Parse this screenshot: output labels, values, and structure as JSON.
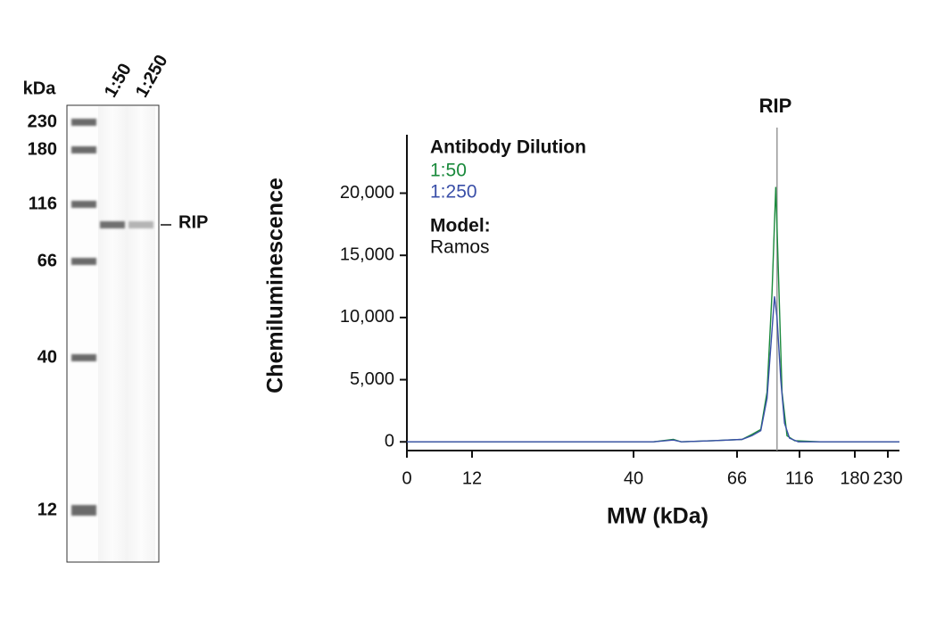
{
  "chart_data": [
    {
      "type": "gel",
      "unit_label": "kDa",
      "markers": [
        230,
        180,
        116,
        66,
        40,
        12
      ],
      "lanes": [
        "1:50",
        "1:250"
      ],
      "band_label": "RIP"
    },
    {
      "type": "line",
      "annotation": "RIP",
      "annotation_x": 98,
      "legend_title": "Antibody Dilution",
      "model_title": "Model:",
      "model": "Ramos",
      "ylabel": "Chemiluminescence",
      "xlabel": "MW (kDa)",
      "series": [
        {
          "name": "1:50",
          "color": "#1a8a3c",
          "x": [
            0,
            20,
            45,
            50,
            52,
            60,
            70,
            78,
            85,
            90,
            94,
            97,
            99,
            102,
            106,
            112,
            140,
            200,
            250
          ],
          "values": [
            0,
            0,
            0,
            200,
            0,
            100,
            200,
            600,
            1000,
            4000,
            12000,
            20500,
            14000,
            4000,
            500,
            100,
            0,
            0,
            0
          ]
        },
        {
          "name": "1:250",
          "color": "#3a4fa8",
          "x": [
            0,
            20,
            45,
            50,
            52,
            60,
            70,
            78,
            85,
            90,
            94,
            96,
            98,
            101,
            104,
            108,
            115,
            200,
            250
          ],
          "values": [
            0,
            0,
            0,
            150,
            0,
            100,
            200,
            500,
            900,
            3500,
            9000,
            11700,
            10000,
            5000,
            1500,
            300,
            0,
            0,
            0
          ]
        }
      ],
      "xlim": [
        0,
        250
      ],
      "ylim": [
        -700,
        24700
      ],
      "xticks": [
        0,
        12,
        40,
        66,
        116,
        180,
        230
      ],
      "yticks": [
        0,
        {
          "value": 5000,
          "label": "5,000"
        },
        {
          "value": 10000,
          "label": "10,000"
        },
        {
          "value": 15000,
          "label": "15,000"
        },
        {
          "value": 20000,
          "label": "20,000"
        }
      ]
    }
  ]
}
